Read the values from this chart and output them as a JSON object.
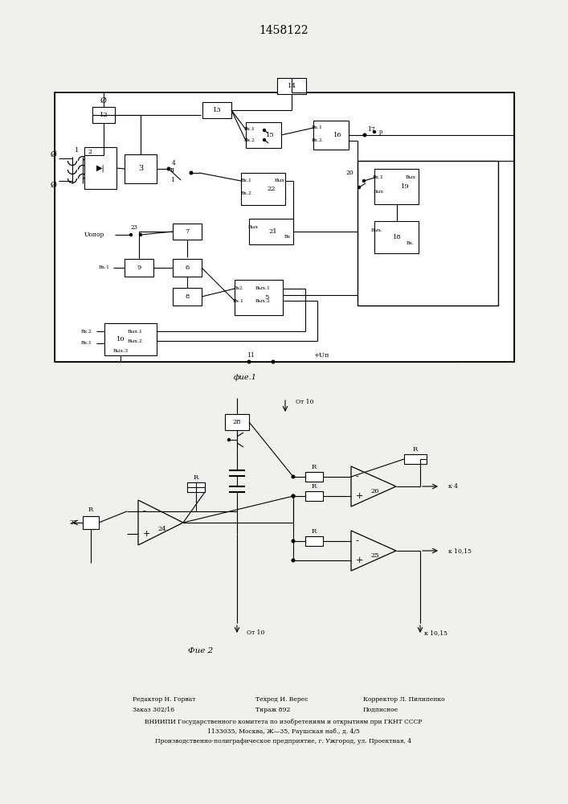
{
  "title": "1458122",
  "fig1_caption": "фие.1",
  "fig2_caption": "Фиe 2",
  "footer_col1": [
    "Редактор Н. Горват",
    "Заказ 302/16"
  ],
  "footer_col2": [
    "Техред И. Верес",
    "Тираж 892"
  ],
  "footer_col3": [
    "Корректор Л. Пилипенко",
    "Подписное"
  ],
  "footer_line3": "ВНИИПИ Государственного комитета по изобретениям и открытиям при ГКНТ СССР",
  "footer_line4": "1133035, Москва, Ж—35, Раушская наб., д. 4/5",
  "footer_line5": "Производственно-полиграфическое предприятие, г. Ужгород, ул. Проектная, 4",
  "bg_color": "#f0f0ec"
}
